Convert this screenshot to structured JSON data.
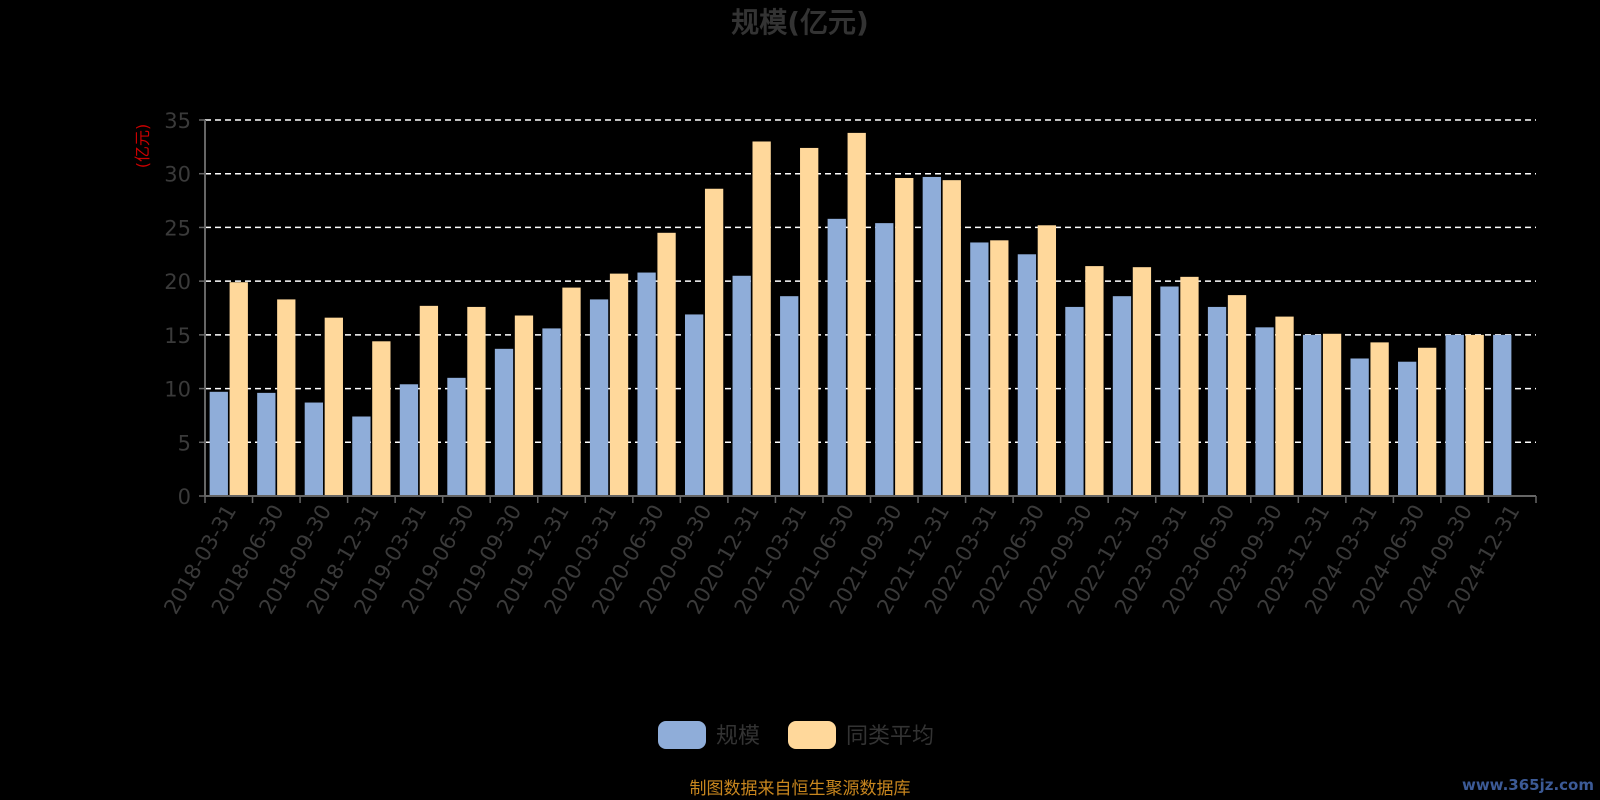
{
  "chart_data": {
    "type": "bar",
    "title": "规模(亿元)",
    "y_unit_label": "(亿元)",
    "ylim": [
      0,
      35
    ],
    "yticks": [
      0,
      5,
      10,
      15,
      20,
      25,
      30,
      35
    ],
    "grid": true,
    "legend_position": "bottom-center",
    "categories": [
      "2018-03-31",
      "2018-06-30",
      "2018-09-30",
      "2018-12-31",
      "2019-03-31",
      "2019-06-30",
      "2019-09-30",
      "2019-12-31",
      "2020-03-31",
      "2020-06-30",
      "2020-09-30",
      "2020-12-31",
      "2021-03-31",
      "2021-06-30",
      "2021-09-30",
      "2021-12-31",
      "2022-03-31",
      "2022-06-30",
      "2022-09-30",
      "2022-12-31",
      "2023-03-31",
      "2023-06-30",
      "2023-09-30",
      "2023-12-31",
      "2024-03-31",
      "2024-06-30",
      "2024-09-30",
      "2024-12-31"
    ],
    "series": [
      {
        "name": "规模",
        "color": "#8fadd9",
        "values": [
          9.7,
          9.6,
          8.7,
          7.4,
          10.4,
          11.0,
          13.7,
          15.6,
          18.3,
          20.8,
          16.9,
          20.5,
          18.6,
          25.8,
          25.4,
          29.7,
          23.6,
          22.5,
          17.6,
          18.6,
          19.5,
          17.6,
          15.7,
          15.0,
          12.8,
          12.5,
          15.0,
          15.0
        ]
      },
      {
        "name": "同类平均",
        "color": "#ffd89b",
        "values": [
          19.9,
          18.3,
          16.6,
          14.4,
          17.7,
          17.6,
          16.8,
          19.4,
          20.7,
          24.5,
          28.6,
          33.0,
          32.4,
          33.8,
          29.6,
          29.4,
          23.8,
          25.2,
          21.4,
          21.3,
          20.4,
          18.7,
          16.7,
          15.1,
          14.3,
          13.8,
          15.0,
          null
        ]
      }
    ]
  },
  "source_note": "制图数据来自恒生聚源数据库",
  "watermark": "www.365jz.com",
  "colors": {
    "background": "#000000",
    "grid": "#ffffff",
    "axis": "#666666"
  }
}
